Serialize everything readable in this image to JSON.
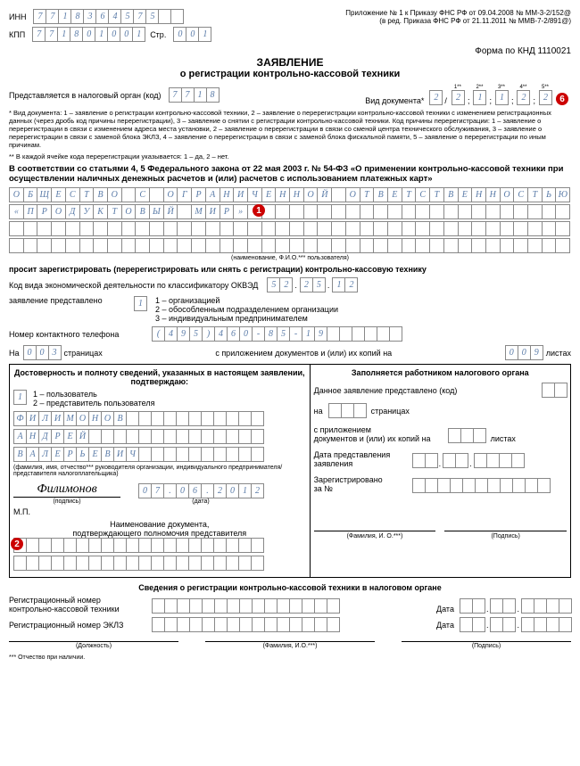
{
  "header": {
    "inn_label": "ИНН",
    "inn": [
      "7",
      "7",
      "1",
      "8",
      "3",
      "6",
      "4",
      "5",
      "7",
      "5",
      "",
      ""
    ],
    "kpp_label": "КПП",
    "kpp": [
      "7",
      "7",
      "1",
      "8",
      "0",
      "1",
      "0",
      "0",
      "1"
    ],
    "str_label": "Стр.",
    "str": [
      "0",
      "0",
      "1"
    ],
    "appendix": "Приложение № 1 к Приказу ФНС РФ от 09.04.2008 № ММ-3-2/152@ (в ред. Приказа ФНС РФ от 21.11.2011 № ММВ-7-2/891@)",
    "form_code": "Форма по КНД 1110021"
  },
  "title": "ЗАЯВЛЕНИЕ",
  "subtitle": "о регистрации контрольно-кассовой техники",
  "present": {
    "label": "Представляется в налоговый орган (код)",
    "code": [
      "7",
      "7",
      "1",
      "8"
    ],
    "doc_label": "Вид документа*",
    "doc_main": "2",
    "doc_sub": [
      "2",
      "1",
      "1",
      "2",
      "2"
    ],
    "doc_sub_super": [
      "1**",
      "2**",
      "3**",
      "4**",
      "5**"
    ]
  },
  "footnote1": "* Вид документа: 1 – заявление о регистрации контрольно-кассовой техники, 2 – заявление о перерегистрации контрольно-кассовой техники с изменением регистрационных данных (через дробь код причины перерегистрации), 3 – заявление о снятии с регистрации контрольно-кассовой техники. Код причины перерегистрации: 1 – заявление о перерегистрации в связи с изменением адреса места установки, 2 – заявление о перерегистрации в связи со сменой центра технического обслуживания, 3 – заявление о перерегистрации в связи с заменой блока ЭКЛЗ, 4 – заявление о перерегистрации в связи с заменой блока фискальной памяти, 5 – заявление о перерегистрации по иным причинам.",
  "footnote2": "** В каждой ячейке кода перерегистрации указывается: 1 – да, 2 – нет.",
  "law_text": "В соответствии со статьями 4, 5 Федерального закона от 22 мая 2003 г. № 54-ФЗ «О применении контрольно-кассовой техники при осуществлении наличных денежных расчетов и (или) расчетов с использованием платежных карт»",
  "org_rows": [
    [
      "О",
      "Б",
      "Щ",
      "Е",
      "С",
      "Т",
      "В",
      "О",
      "",
      "С",
      "",
      "О",
      "Г",
      "Р",
      "А",
      "Н",
      "И",
      "Ч",
      "Е",
      "Н",
      "Н",
      "О",
      "Й",
      "",
      "О",
      "Т",
      "В",
      "Е",
      "Т",
      "С",
      "Т",
      "В",
      "Е",
      "Н",
      "Н",
      "О",
      "С",
      "Т",
      "Ь",
      "Ю"
    ],
    [
      "«",
      "П",
      "Р",
      "О",
      "Д",
      "У",
      "К",
      "Т",
      "О",
      "В",
      "Ы",
      "Й",
      "",
      "М",
      "И",
      "Р",
      "»",
      "",
      "",
      "",
      "",
      "",
      "",
      "",
      "",
      "",
      "",
      "",
      "",
      "",
      "",
      "",
      "",
      "",
      "",
      "",
      "",
      "",
      "",
      ""
    ],
    [
      "",
      "",
      "",
      "",
      "",
      "",
      "",
      "",
      "",
      "",
      "",
      "",
      "",
      "",
      "",
      "",
      "",
      "",
      "",
      "",
      "",
      "",
      "",
      "",
      "",
      "",
      "",
      "",
      "",
      "",
      "",
      "",
      "",
      "",
      "",
      "",
      "",
      "",
      "",
      ""
    ],
    [
      "",
      "",
      "",
      "",
      "",
      "",
      "",
      "",
      "",
      "",
      "",
      "",
      "",
      "",
      "",
      "",
      "",
      "",
      "",
      "",
      "",
      "",
      "",
      "",
      "",
      "",
      "",
      "",
      "",
      "",
      "",
      "",
      "",
      "",
      "",
      "",
      "",
      "",
      "",
      ""
    ]
  ],
  "org_caption": "(наименование, Ф.И.О.*** пользователя)",
  "request_text": "просит зарегистрировать (перерегистрировать или снять с регистрации) контрольно-кассовую технику",
  "okved": {
    "label": "Код вида экономической деятельности по классификатору ОКВЭД",
    "p1": [
      "5",
      "2"
    ],
    "p2": [
      "2",
      "5"
    ],
    "p3": [
      "1",
      "2"
    ]
  },
  "applicant": {
    "label": "заявление представлено",
    "val": "1",
    "opts": "1 – организацией\n2 – обособленным подразделением организации\n3 – индивидуальным предпринимателем"
  },
  "phone": {
    "label": "Номер контактного телефона",
    "cells": [
      "(",
      "4",
      "9",
      "5",
      ")",
      "4",
      "6",
      "0",
      "-",
      "8",
      "5",
      "-",
      "1",
      "9",
      "",
      "",
      "",
      "",
      "",
      ""
    ]
  },
  "pages": {
    "on_label": "На",
    "on": [
      "0",
      "0",
      "3"
    ],
    "on_suffix": "страницах",
    "att_label": "с приложением документов и (или) их копий на",
    "att": [
      "0",
      "0",
      "9"
    ],
    "att_suffix": "листах"
  },
  "left_block": {
    "title": "Достоверность и полноту сведений, указанных в настоящем заявлении, подтверждаю:",
    "who_val": "1",
    "who_opts": "1 – пользователь\n2 – представитель пользователя",
    "name_rows": [
      [
        "Ф",
        "И",
        "Л",
        "И",
        "М",
        "О",
        "Н",
        "О",
        "В",
        "",
        "",
        "",
        "",
        "",
        "",
        "",
        "",
        "",
        "",
        ""
      ],
      [
        "А",
        "Н",
        "Д",
        "Р",
        "Е",
        "Й",
        "",
        "",
        "",
        "",
        "",
        "",
        "",
        "",
        "",
        "",
        "",
        "",
        "",
        ""
      ],
      [
        "В",
        "А",
        "Л",
        "Е",
        "Р",
        "Ь",
        "Е",
        "В",
        "И",
        "Ч",
        "",
        "",
        "",
        "",
        "",
        "",
        "",
        "",
        "",
        ""
      ]
    ],
    "name_caption": "(фамилия, имя, отчество*** руководителя организации, индивидуального предпринимателя/представителя налогоплательщика)",
    "signature": "Филимонов",
    "sig_caption": "(подпись)",
    "date": [
      "0",
      "7",
      ".",
      "0",
      "6",
      ".",
      "2",
      "0",
      "1",
      "2"
    ],
    "date_caption": "(дата)",
    "mp": "М.П.",
    "doc_title": "Наименование документа,\nподтверждающего полномочия представителя",
    "doc_rows": [
      [
        "",
        "",
        "",
        "",
        "",
        "",
        "",
        "",
        "",
        "",
        "",
        "",
        "",
        "",
        "",
        "",
        "",
        "",
        "",
        ""
      ],
      [
        "",
        "",
        "",
        "",
        "",
        "",
        "",
        "",
        "",
        "",
        "",
        "",
        "",
        "",
        "",
        "",
        "",
        "",
        "",
        ""
      ]
    ]
  },
  "right_block": {
    "title": "Заполняется работником налогового органа",
    "l1": "Данное заявление представлено (код)",
    "l2a": "на",
    "l2b": "страницах",
    "l3": "с приложением\nдокументов и (или) их копий на",
    "l3b": "листах",
    "l4": "Дата представления\nзаявления",
    "l5": "Зарегистрировано\nза №",
    "fio": "(Фамилия, И. О.***)",
    "sig": "(Подпись)"
  },
  "bottom": {
    "title": "Сведения о регистрации контрольно-кассовой техники в налоговом органе",
    "reg_label": "Регистрационный номер\nконтрольно-кассовой техники",
    "eklz_label": "Регистрационный номер ЭКЛЗ",
    "date_label": "Дата",
    "cols": [
      "(Должность)",
      "(Фамилия, И.О.***)",
      "(Подпись)"
    ],
    "foot": "*** Отчество при наличии."
  },
  "markers": {
    "m1": "1",
    "m2": "2",
    "m6": "6"
  }
}
